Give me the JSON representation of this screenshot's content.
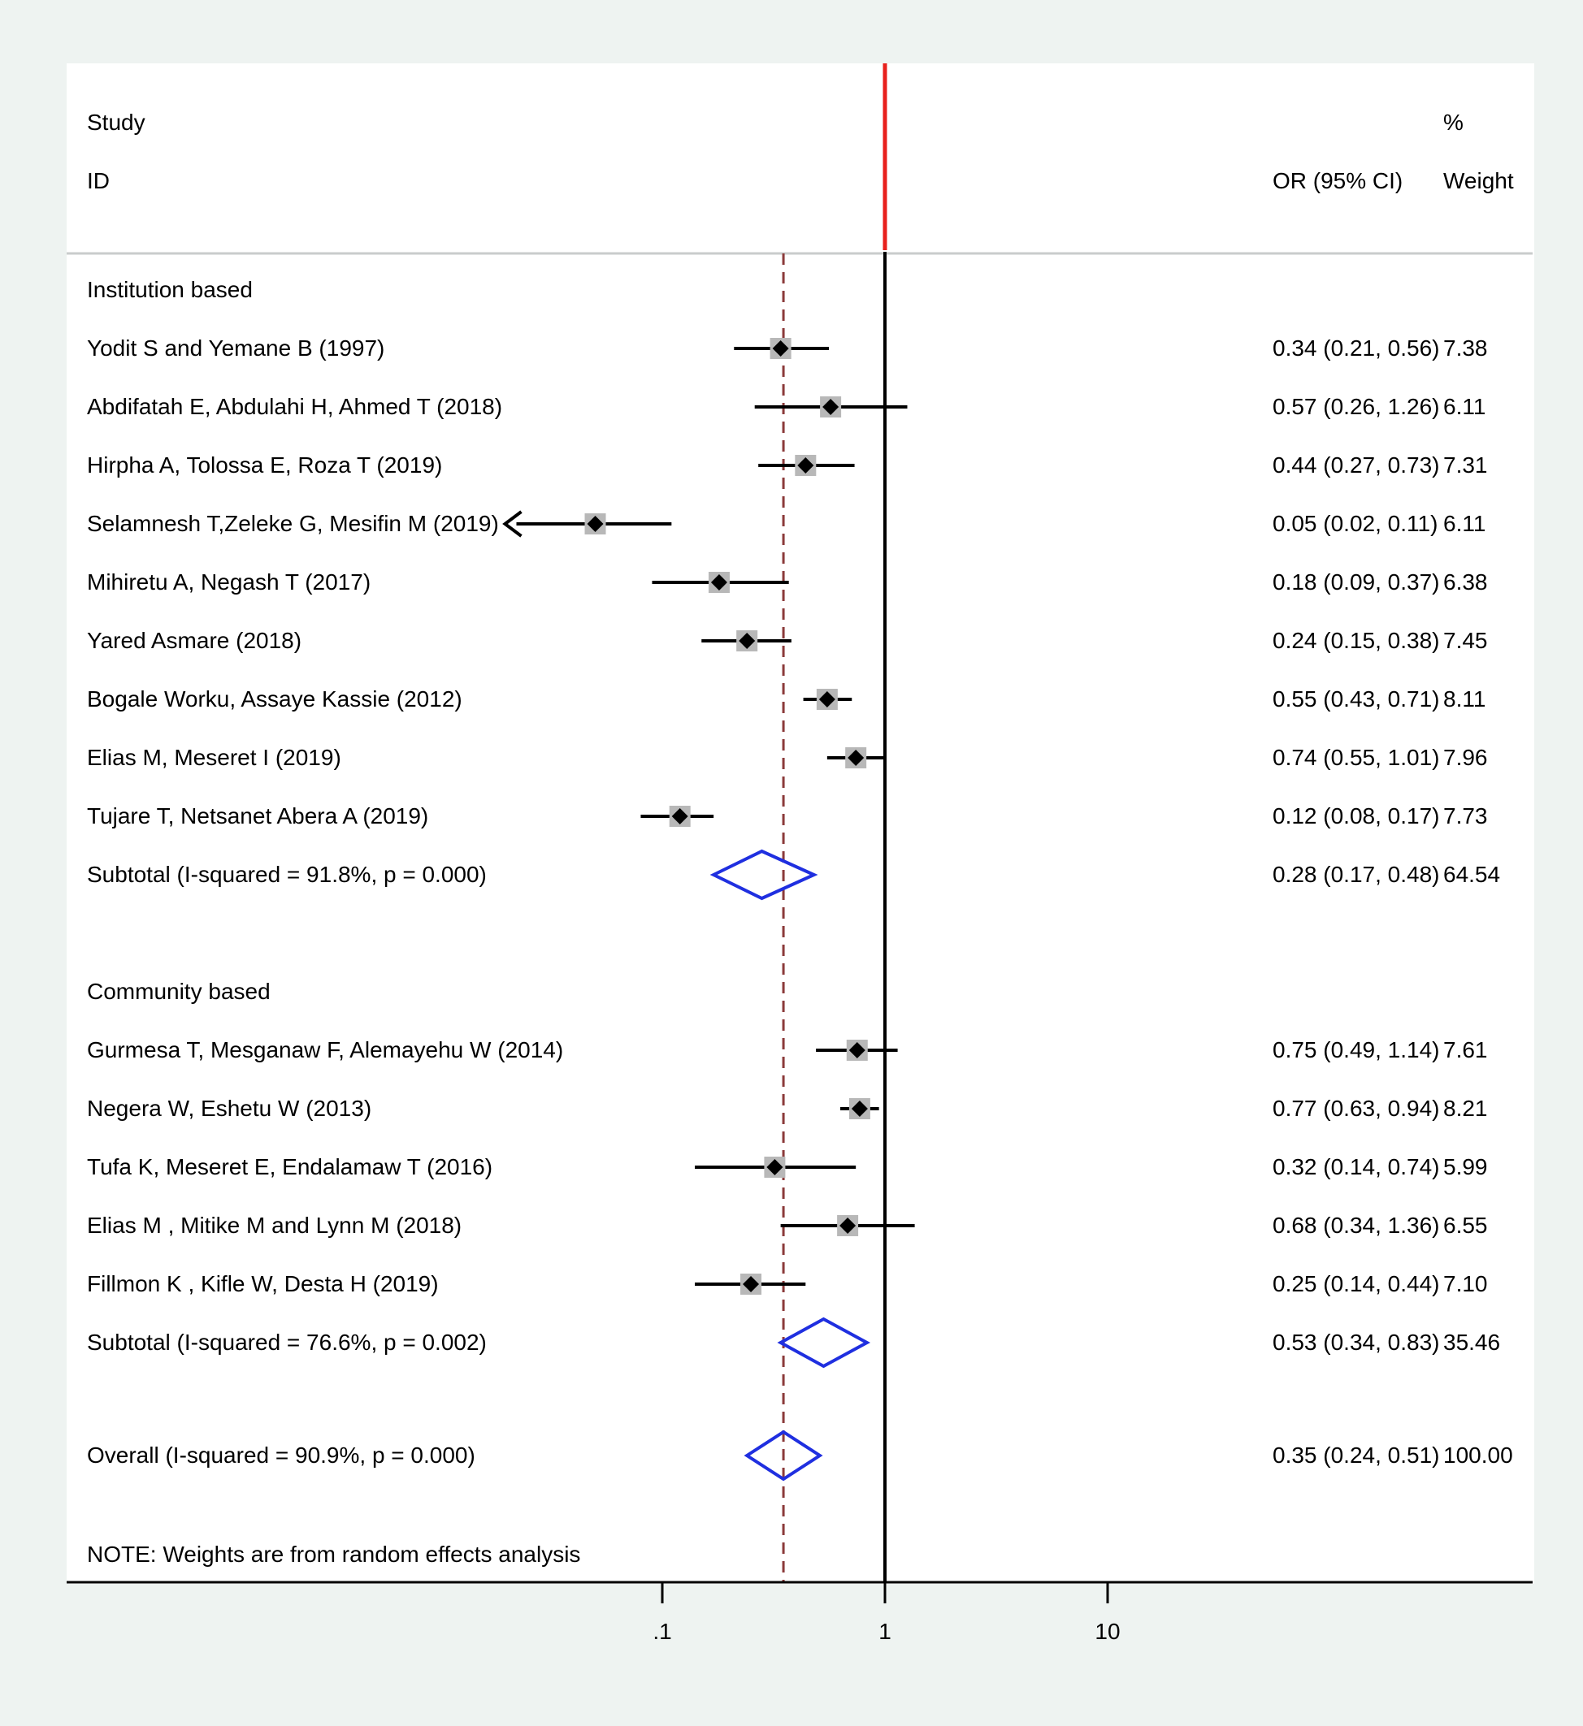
{
  "header": {
    "study_label": "Study",
    "id_label": "ID",
    "or_label": "OR (95% CI)",
    "weight_pct_label": "%",
    "weight_label": "Weight"
  },
  "note": "NOTE: Weights are from random effects analysis",
  "colors": {
    "null_line": "#e8201c",
    "overall_line": "#8b3a3a",
    "diamond": "#1f2fe0",
    "marker_box": "#b8b8b8"
  },
  "chart_data": {
    "type": "forest",
    "x_scale": "log",
    "xlim": [
      0.02,
      40
    ],
    "x_ticks": [
      {
        "value": 0.1,
        "label": ".1"
      },
      {
        "value": 1,
        "label": "1"
      },
      {
        "value": 10,
        "label": "10"
      }
    ],
    "null_value": 1,
    "overall_value": 0.35,
    "groups": [
      {
        "label": "Institution based",
        "studies": [
          {
            "id": "Yodit S and Yemane B (1997)",
            "or": 0.34,
            "lo": 0.21,
            "hi": 0.56,
            "ci_text": "0.34 (0.21, 0.56)",
            "weight": "7.38"
          },
          {
            "id": "Abdifatah E, Abdulahi H, Ahmed T (2018)",
            "or": 0.57,
            "lo": 0.26,
            "hi": 1.26,
            "ci_text": "0.57 (0.26, 1.26)",
            "weight": "6.11"
          },
          {
            "id": "Hirpha A, Tolossa E, Roza T (2019)",
            "or": 0.44,
            "lo": 0.27,
            "hi": 0.73,
            "ci_text": "0.44 (0.27, 0.73)",
            "weight": "7.31"
          },
          {
            "id": "Selamnesh T,Zeleke G, Mesifin M (2019)",
            "or": 0.05,
            "lo": 0.02,
            "hi": 0.11,
            "ci_text": "0.05 (0.02, 0.11)",
            "weight": "6.11",
            "arrow_left": true
          },
          {
            "id": "Mihiretu A, Negash T (2017)",
            "or": 0.18,
            "lo": 0.09,
            "hi": 0.37,
            "ci_text": "0.18 (0.09, 0.37)",
            "weight": "6.38"
          },
          {
            "id": "Yared Asmare (2018)",
            "or": 0.24,
            "lo": 0.15,
            "hi": 0.38,
            "ci_text": "0.24 (0.15, 0.38)",
            "weight": "7.45"
          },
          {
            "id": "Bogale Worku, Assaye Kassie (2012)",
            "or": 0.55,
            "lo": 0.43,
            "hi": 0.71,
            "ci_text": "0.55 (0.43, 0.71)",
            "weight": "8.11"
          },
          {
            "id": "Elias M, Meseret I (2019)",
            "or": 0.74,
            "lo": 0.55,
            "hi": 1.01,
            "ci_text": "0.74 (0.55, 1.01)",
            "weight": "7.96"
          },
          {
            "id": "Tujare T, Netsanet Abera A (2019)",
            "or": 0.12,
            "lo": 0.08,
            "hi": 0.17,
            "ci_text": "0.12 (0.08, 0.17)",
            "weight": "7.73"
          }
        ],
        "subtotal": {
          "label": "Subtotal  (I-squared = 91.8%, p = 0.000)",
          "or": 0.28,
          "lo": 0.17,
          "hi": 0.48,
          "ci_text": "0.28 (0.17, 0.48)",
          "weight": "64.54"
        }
      },
      {
        "label": "Community based",
        "studies": [
          {
            "id": "Gurmesa T, Mesganaw F, Alemayehu W (2014)",
            "or": 0.75,
            "lo": 0.49,
            "hi": 1.14,
            "ci_text": "0.75 (0.49, 1.14)",
            "weight": "7.61"
          },
          {
            "id": "Negera W, Eshetu W (2013)",
            "or": 0.77,
            "lo": 0.63,
            "hi": 0.94,
            "ci_text": "0.77 (0.63, 0.94)",
            "weight": "8.21"
          },
          {
            "id": "Tufa K, Meseret E, Endalamaw T (2016)",
            "or": 0.32,
            "lo": 0.14,
            "hi": 0.74,
            "ci_text": "0.32 (0.14, 0.74)",
            "weight": "5.99"
          },
          {
            "id": "Elias M , Mitike M and Lynn M (2018)",
            "or": 0.68,
            "lo": 0.34,
            "hi": 1.36,
            "ci_text": "0.68 (0.34, 1.36)",
            "weight": "6.55"
          },
          {
            "id": "Fillmon K , Kifle W, Desta H (2019)",
            "or": 0.25,
            "lo": 0.14,
            "hi": 0.44,
            "ci_text": "0.25 (0.14, 0.44)",
            "weight": "7.10"
          }
        ],
        "subtotal": {
          "label": "Subtotal  (I-squared = 76.6%, p = 0.002)",
          "or": 0.53,
          "lo": 0.34,
          "hi": 0.83,
          "ci_text": "0.53 (0.34, 0.83)",
          "weight": "35.46"
        }
      }
    ],
    "overall": {
      "label": "Overall  (I-squared = 90.9%, p = 0.000)",
      "or": 0.35,
      "lo": 0.24,
      "hi": 0.51,
      "ci_text": "0.35 (0.24, 0.51)",
      "weight": "100.00"
    }
  }
}
